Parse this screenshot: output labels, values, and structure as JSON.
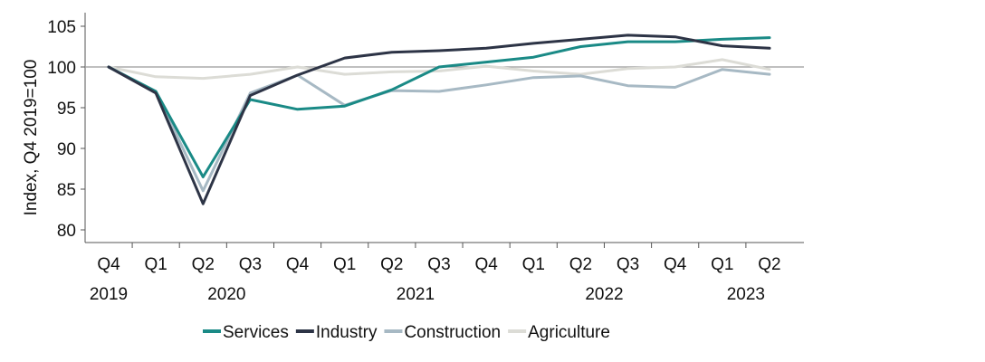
{
  "chart_data": {
    "type": "line",
    "title": "",
    "xlabel": "",
    "ylabel": "Index, Q4 2019=100",
    "ylim": [
      78,
      106
    ],
    "yticks": [
      80,
      85,
      90,
      95,
      100,
      105
    ],
    "reference_line": 100,
    "grid": false,
    "legend_position": "bottom",
    "categories": [
      "Q4",
      "Q1",
      "Q2",
      "Q3",
      "Q4",
      "Q1",
      "Q2",
      "Q3",
      "Q4",
      "Q1",
      "Q2",
      "Q3",
      "Q4",
      "Q1",
      "Q2"
    ],
    "year_labels": [
      {
        "label": "2019",
        "at_index": 0
      },
      {
        "label": "2020",
        "at_index": 2.5
      },
      {
        "label": "2021",
        "at_index": 6.5
      },
      {
        "label": "2022",
        "at_index": 10.5
      },
      {
        "label": "2023",
        "at_index": 13.5
      }
    ],
    "series": [
      {
        "name": "Services",
        "color": "#1a8a86",
        "values": [
          100,
          97.0,
          86.5,
          96.0,
          94.8,
          95.2,
          97.2,
          100.0,
          100.6,
          101.2,
          102.5,
          103.1,
          103.1,
          103.4,
          103.6
        ]
      },
      {
        "name": "Industry",
        "color": "#2d3446",
        "values": [
          100,
          96.8,
          83.2,
          96.5,
          99.0,
          101.1,
          101.8,
          102.0,
          102.3,
          102.9,
          103.4,
          103.9,
          103.7,
          102.6,
          102.3
        ]
      },
      {
        "name": "Construction",
        "color": "#a7b9c4",
        "values": [
          100,
          97.0,
          84.8,
          96.8,
          99.0,
          95.3,
          97.1,
          97.0,
          97.8,
          98.7,
          98.9,
          97.7,
          97.5,
          99.7,
          99.1
        ]
      },
      {
        "name": "Agriculture",
        "color": "#dcdcd6",
        "values": [
          100,
          98.8,
          98.6,
          99.1,
          100.0,
          99.1,
          99.4,
          99.5,
          100.1,
          99.5,
          99.1,
          99.8,
          100.0,
          100.9,
          99.7
        ]
      }
    ]
  }
}
